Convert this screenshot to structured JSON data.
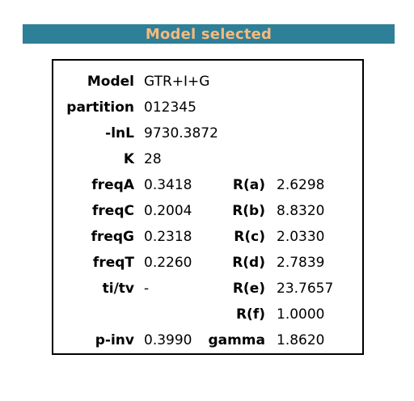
{
  "header": {
    "title": "Model selected"
  },
  "model": {
    "model_label": "Model",
    "model_value": "GTR+I+G",
    "partition_label": "partition",
    "partition_value": "012345",
    "lnl_label": "-lnL",
    "lnl_value": "9730.3872",
    "k_label": "K",
    "k_value": "28"
  },
  "rows": [
    {
      "label": "freqA",
      "value": "0.3418",
      "label2": "R(a)",
      "value2": "2.6298"
    },
    {
      "label": "freqC",
      "value": "0.2004",
      "label2": "R(b)",
      "value2": "8.8320"
    },
    {
      "label": "freqG",
      "value": "0.2318",
      "label2": "R(c)",
      "value2": "2.0330"
    },
    {
      "label": "freqT",
      "value": "0.2260",
      "label2": "R(d)",
      "value2": "2.7839"
    },
    {
      "label": "ti/tv",
      "value": "-",
      "label2": "R(e)",
      "value2": "23.7657"
    },
    {
      "label": "",
      "value": "",
      "label2": "R(f)",
      "value2": "1.0000"
    },
    {
      "label": "p-inv",
      "value": "0.3990",
      "label2": "gamma",
      "value2": "1.8620"
    }
  ]
}
